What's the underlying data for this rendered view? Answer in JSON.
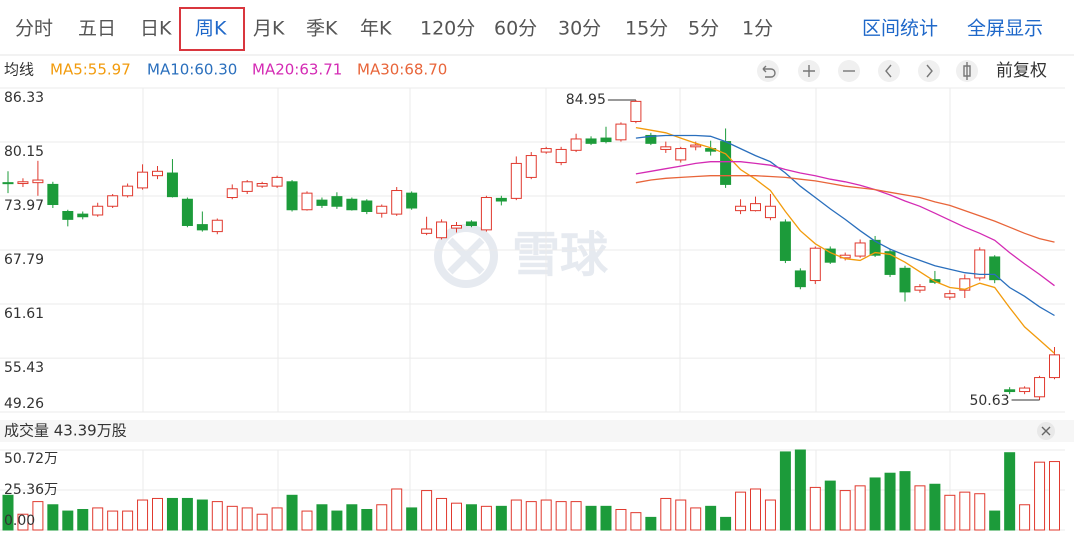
{
  "toolbar": {
    "tabs": [
      "分时",
      "五日",
      "日K",
      "周K",
      "月K",
      "季K",
      "年K",
      "120分",
      "60分",
      "30分",
      "15分",
      "5分",
      "1分"
    ],
    "active_tab": 3,
    "actions": [
      "区间统计",
      "全屏显示"
    ]
  },
  "chart_data": [
    {
      "type": "candlestick",
      "legend_title": "均线",
      "adjust_label": "前复权",
      "watermark": "雪球",
      "up_color": "#e0392e",
      "down_color": "#1c9b3a",
      "ylim": [
        49.26,
        86.33
      ],
      "yticks": [
        86.33,
        80.15,
        73.97,
        67.79,
        61.61,
        55.43,
        49.26
      ],
      "grid": true,
      "open": [
        75.5,
        75.4,
        75.5,
        75.3,
        72.2,
        71.9,
        71.8,
        72.8,
        74.0,
        74.9,
        76.3,
        76.6,
        73.6,
        70.7,
        69.9,
        73.8,
        74.5,
        75.1,
        75.1,
        75.6,
        72.4,
        73.5,
        73.9,
        73.6,
        73.4,
        72.0,
        71.9,
        74.3,
        69.7,
        69.2,
        70.3,
        71.0,
        70.1,
        73.7,
        73.7,
        76.1,
        79.0,
        77.8,
        79.2,
        80.5,
        80.6,
        80.4,
        82.5,
        80.9,
        79.3,
        78.1,
        79.6,
        79.4,
        80.2,
        72.3,
        72.3,
        71.5,
        71.0,
        65.4,
        64.3,
        67.9,
        66.9,
        67.1,
        68.9,
        67.6,
        65.7,
        63.2,
        64.4,
        62.4,
        63.2,
        64.6,
        67.0,
        51.8,
        51.6,
        51.0,
        53.2
      ],
      "close": [
        75.4,
        75.6,
        75.8,
        73.0,
        71.3,
        71.6,
        72.8,
        74.0,
        75.1,
        76.7,
        76.8,
        73.9,
        70.6,
        70.1,
        71.2,
        74.8,
        75.6,
        75.4,
        76.1,
        72.4,
        74.3,
        72.9,
        72.8,
        72.4,
        72.2,
        72.8,
        74.6,
        72.6,
        70.2,
        71.0,
        70.6,
        70.6,
        73.8,
        73.4,
        77.7,
        78.6,
        79.4,
        79.3,
        80.5,
        80.0,
        80.2,
        82.2,
        84.8,
        80.0,
        79.6,
        79.4,
        79.8,
        79.1,
        75.3,
        72.8,
        73.1,
        72.8,
        66.6,
        63.6,
        68.0,
        66.4,
        67.2,
        68.6,
        67.2,
        65.0,
        63.0,
        63.6,
        64.1,
        62.8,
        64.5,
        67.8,
        64.4,
        51.6,
        52.0,
        53.2,
        55.8
      ],
      "high": [
        76.8,
        76.0,
        78.0,
        75.6,
        72.4,
        72.2,
        73.2,
        74.2,
        75.4,
        77.6,
        77.4,
        78.2,
        73.8,
        72.2,
        71.4,
        75.3,
        75.8,
        75.6,
        76.3,
        75.8,
        74.5,
        73.8,
        74.4,
        73.8,
        73.6,
        73.0,
        75.0,
        74.5,
        71.6,
        71.3,
        71.0,
        71.2,
        74.0,
        74.0,
        78.5,
        79.0,
        79.6,
        79.6,
        81.1,
        80.8,
        81.9,
        82.4,
        84.95,
        81.2,
        80.2,
        79.6,
        80.2,
        80.3,
        81.7,
        73.6,
        73.9,
        74.2,
        71.3,
        65.7,
        68.2,
        68.2,
        67.5,
        69.0,
        69.4,
        67.9,
        66.0,
        63.9,
        65.4,
        63.2,
        65.0,
        68.1,
        67.2,
        52.1,
        52.2,
        53.4,
        56.7
      ],
      "low": [
        74.3,
        75.0,
        74.0,
        72.6,
        70.5,
        71.3,
        71.6,
        72.6,
        73.8,
        74.7,
        75.9,
        73.8,
        70.4,
        69.9,
        69.6,
        73.6,
        74.2,
        74.9,
        74.9,
        72.2,
        72.3,
        72.6,
        72.5,
        72.3,
        71.9,
        71.5,
        71.7,
        72.4,
        69.5,
        69.0,
        69.8,
        70.4,
        69.9,
        72.9,
        73.5,
        75.9,
        78.8,
        77.5,
        79.0,
        79.8,
        80.0,
        80.2,
        82.3,
        79.8,
        78.9,
        77.8,
        79.2,
        78.6,
        74.9,
        71.9,
        72.2,
        71.2,
        66.3,
        63.3,
        63.9,
        66.2,
        66.6,
        66.9,
        67.0,
        64.7,
        61.9,
        62.9,
        63.9,
        62.1,
        62.3,
        64.3,
        64.0,
        51.3,
        51.3,
        50.63,
        53.0
      ],
      "series": [
        {
          "name": "MA5:55.97",
          "color": "#f29b0c",
          "values": [
            null,
            null,
            null,
            null,
            null,
            null,
            null,
            null,
            null,
            null,
            null,
            null,
            null,
            null,
            null,
            null,
            null,
            null,
            null,
            null,
            null,
            null,
            null,
            null,
            null,
            null,
            null,
            null,
            null,
            null,
            null,
            null,
            null,
            null,
            null,
            null,
            null,
            null,
            null,
            null,
            null,
            null,
            81.8,
            81.5,
            81.2,
            80.6,
            80.0,
            79.5,
            78.8,
            77.0,
            75.9,
            74.6,
            72.2,
            70.0,
            68.5,
            67.5,
            66.8,
            66.6,
            67.5,
            67.3,
            66.4,
            65.3,
            64.2,
            63.5,
            63.3,
            64.0,
            63.5,
            61.2,
            59.0,
            57.5,
            55.97
          ]
        },
        {
          "name": "MA10:60.30",
          "color": "#2a6fbd",
          "values": [
            null,
            null,
            null,
            null,
            null,
            null,
            null,
            null,
            null,
            null,
            null,
            null,
            null,
            null,
            null,
            null,
            null,
            null,
            null,
            null,
            null,
            null,
            null,
            null,
            null,
            null,
            null,
            null,
            null,
            null,
            null,
            null,
            null,
            null,
            null,
            null,
            null,
            null,
            null,
            null,
            null,
            null,
            80.6,
            80.8,
            80.9,
            80.9,
            80.9,
            80.8,
            80.2,
            79.4,
            78.6,
            77.9,
            76.6,
            75.1,
            73.8,
            72.5,
            71.3,
            70.0,
            68.8,
            67.9,
            67.2,
            66.6,
            66.0,
            65.6,
            65.2,
            65.0,
            65.0,
            63.5,
            62.5,
            61.3,
            60.3
          ]
        },
        {
          "name": "MA20:63.71",
          "color": "#d42bb4",
          "values": [
            null,
            null,
            null,
            null,
            null,
            null,
            null,
            null,
            null,
            null,
            null,
            null,
            null,
            null,
            null,
            null,
            null,
            null,
            null,
            null,
            null,
            null,
            null,
            null,
            null,
            null,
            null,
            null,
            null,
            null,
            null,
            null,
            null,
            null,
            null,
            null,
            null,
            null,
            null,
            null,
            null,
            null,
            76.5,
            76.8,
            77.1,
            77.4,
            77.7,
            77.9,
            77.9,
            77.9,
            77.7,
            77.5,
            77.0,
            76.6,
            76.3,
            75.9,
            75.6,
            75.2,
            74.7,
            74.1,
            73.4,
            72.8,
            72.0,
            71.2,
            70.4,
            69.7,
            68.9,
            67.5,
            66.2,
            65.0,
            63.71
          ]
        },
        {
          "name": "MA30:68.70",
          "color": "#e8653a",
          "values": [
            null,
            null,
            null,
            null,
            null,
            null,
            null,
            null,
            null,
            null,
            null,
            null,
            null,
            null,
            null,
            null,
            null,
            null,
            null,
            null,
            null,
            null,
            null,
            null,
            null,
            null,
            null,
            null,
            null,
            null,
            null,
            null,
            null,
            null,
            null,
            null,
            null,
            null,
            null,
            null,
            null,
            null,
            75.5,
            75.8,
            76.0,
            76.1,
            76.2,
            76.3,
            76.3,
            76.3,
            76.3,
            76.2,
            76.1,
            75.9,
            75.7,
            75.4,
            75.1,
            74.9,
            74.7,
            74.4,
            74.1,
            73.8,
            73.3,
            72.9,
            72.3,
            71.7,
            71.1,
            70.4,
            69.7,
            69.1,
            68.7
          ]
        }
      ]
    },
    {
      "type": "bar",
      "title": "成交量 43.39万股",
      "ylim": [
        0,
        50.72
      ],
      "yticks": [
        {
          "value": 50.72,
          "label": "50.72万"
        },
        {
          "value": 25.36,
          "label": "25.36万"
        },
        {
          "value": 0,
          "label": "0.00"
        }
      ],
      "grid": true,
      "values": [
        22,
        10,
        18,
        16,
        12,
        13,
        14,
        12,
        12,
        19,
        20,
        20,
        20,
        19,
        18,
        15,
        14,
        10,
        14,
        22,
        12,
        16,
        12,
        16,
        13,
        16,
        26,
        14,
        25,
        20,
        17,
        16,
        15,
        15,
        19,
        18,
        19,
        18,
        18,
        15,
        15,
        13,
        11,
        8,
        20,
        19,
        14,
        15,
        8,
        24,
        26,
        19,
        49.5,
        50.72,
        27,
        31,
        25,
        28,
        33,
        36,
        37,
        28,
        29,
        22,
        24,
        23,
        12,
        49,
        16,
        43,
        43.39
      ]
    }
  ]
}
